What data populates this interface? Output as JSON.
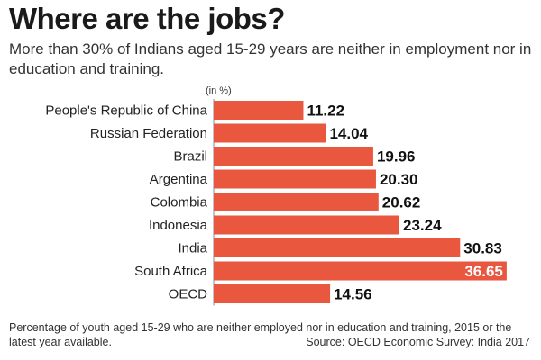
{
  "header": {
    "title": "Where are the jobs?",
    "subtitle": "More than 30% of Indians aged 15-29 years are neither in employment nor in education and training."
  },
  "footer": {
    "note": "Percentage of youth aged 15-29 who are neither employed nor in education and training, 2015 or the latest year available.",
    "source": "Source: OECD Economic Survey: India 2017"
  },
  "colors": {
    "bar": "#e9573f",
    "label_dark": "#111111",
    "label_light": "#ffffff"
  },
  "chart_data": {
    "type": "bar",
    "orientation": "horizontal",
    "unit_label": "(in %)",
    "categories": [
      "People's Republic of China",
      "Russian Federation",
      "Brazil",
      "Argentina",
      "Colombia",
      "Indonesia",
      "India",
      "South Africa",
      "OECD"
    ],
    "values": [
      11.22,
      14.04,
      19.96,
      20.3,
      20.62,
      23.24,
      30.83,
      36.65,
      14.56
    ],
    "value_labels": [
      "11.22",
      "14.04",
      "19.96",
      "20.30",
      "20.62",
      "23.24",
      "30.83",
      "36.65",
      "14.56"
    ],
    "xlim": [
      0,
      37
    ],
    "grid": false,
    "legend": "none"
  }
}
